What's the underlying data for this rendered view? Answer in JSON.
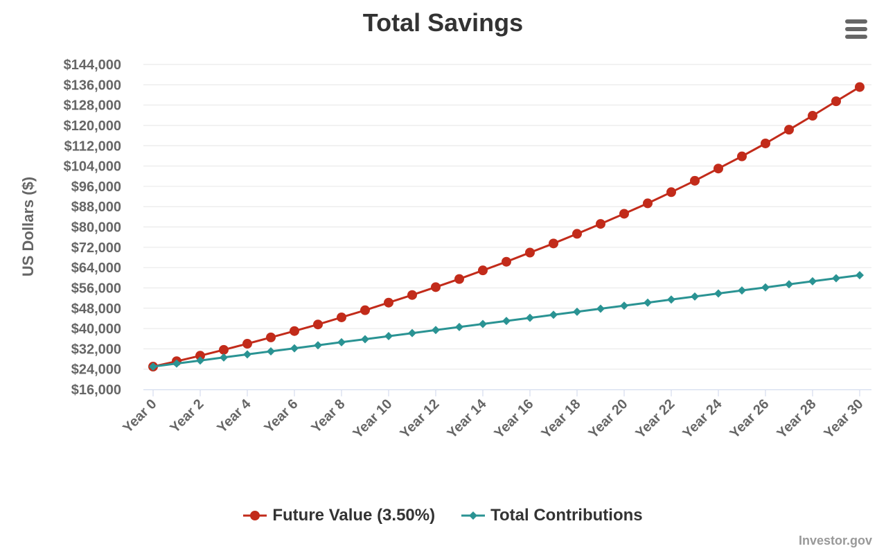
{
  "chart_data": {
    "type": "line",
    "title": "Total Savings",
    "xlabel": "",
    "ylabel": "US Dollars ($)",
    "categories": [
      "Year 0",
      "Year 1",
      "Year 2",
      "Year 3",
      "Year 4",
      "Year 5",
      "Year 6",
      "Year 7",
      "Year 8",
      "Year 9",
      "Year 10",
      "Year 11",
      "Year 12",
      "Year 13",
      "Year 14",
      "Year 15",
      "Year 16",
      "Year 17",
      "Year 18",
      "Year 19",
      "Year 20",
      "Year 21",
      "Year 22",
      "Year 23",
      "Year 24",
      "Year 25",
      "Year 26",
      "Year 27",
      "Year 28",
      "Year 29",
      "Year 30"
    ],
    "x_tick_labels": [
      "Year 0",
      "Year 2",
      "Year 4",
      "Year 6",
      "Year 8",
      "Year 10",
      "Year 12",
      "Year 14",
      "Year 16",
      "Year 18",
      "Year 20",
      "Year 22",
      "Year 24",
      "Year 26",
      "Year 28",
      "Year 30"
    ],
    "ylim": [
      16000,
      144000
    ],
    "y_tick_labels": [
      "$16,000",
      "$24,000",
      "$32,000",
      "$40,000",
      "$48,000",
      "$56,000",
      "$64,000",
      "$72,000",
      "$80,000",
      "$88,000",
      "$96,000",
      "$104,000",
      "$112,000",
      "$120,000",
      "$128,000",
      "$136,000",
      "$144,000"
    ],
    "grid": true,
    "legend_position": "bottom",
    "series": [
      {
        "name": "Future Value (3.50%)",
        "color": "#c22b1a",
        "marker": "circle",
        "values": [
          25000,
          27120,
          29300,
          31600,
          34000,
          36500,
          39000,
          41600,
          44400,
          47200,
          50200,
          53200,
          56300,
          59500,
          62900,
          66300,
          69900,
          73500,
          77300,
          81200,
          85200,
          89300,
          93700,
          98200,
          103000,
          107800,
          112900,
          118300,
          123800,
          129500,
          135100
        ]
      },
      {
        "name": "Total Contributions",
        "color": "#2a9393",
        "marker": "diamond",
        "values": [
          25000,
          26200,
          27400,
          28600,
          29800,
          31000,
          32200,
          33400,
          34600,
          35800,
          37000,
          38200,
          39400,
          40600,
          41800,
          43000,
          44200,
          45400,
          46600,
          47800,
          49000,
          50200,
          51400,
          52600,
          53800,
          55000,
          56200,
          57400,
          58600,
          59800,
          61000
        ]
      }
    ]
  },
  "ui": {
    "menu_icon": "hamburger-menu-icon",
    "credit": "Investor.gov"
  }
}
